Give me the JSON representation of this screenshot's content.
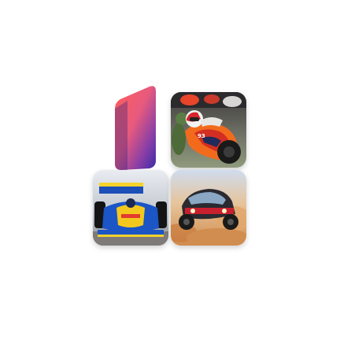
{
  "app_tiles": [
    {
      "id": "logo",
      "icon": "brand-logo-icon",
      "gradient": [
        "#f2566f",
        "#d24f8f",
        "#4a2fa8"
      ]
    },
    {
      "id": "motogp",
      "icon": "motorcycle-racing-icon",
      "accent": "#f06d19"
    },
    {
      "id": "f1",
      "icon": "formula-one-car-icon",
      "accent": "#1b55c6"
    },
    {
      "id": "rally",
      "icon": "rally-car-icon",
      "accent": "#d88a4a"
    }
  ]
}
